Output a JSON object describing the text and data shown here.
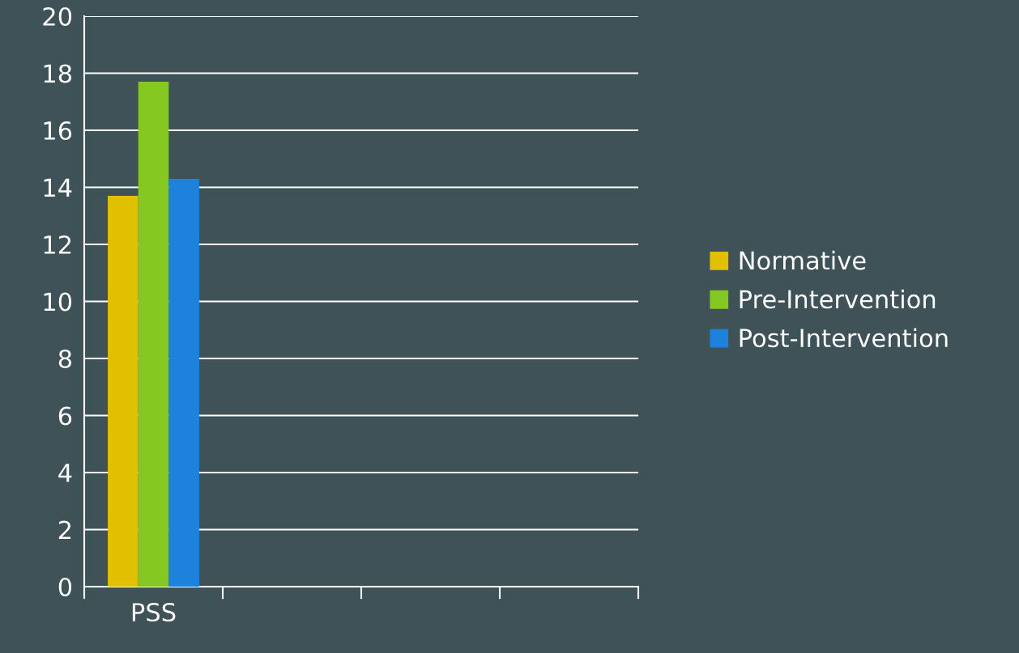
{
  "chart_data": {
    "type": "bar",
    "categories": [
      "PSS",
      null,
      null,
      null
    ],
    "series": [
      {
        "name": "Normative",
        "color": "#e0c000",
        "values": [
          13.7,
          null,
          null,
          null
        ]
      },
      {
        "name": "Pre-Intervention",
        "color": "#86c822",
        "values": [
          17.7,
          null,
          null,
          null
        ]
      },
      {
        "name": "Post-Intervention",
        "color": "#1c82dc",
        "values": [
          14.3,
          null,
          null,
          null
        ]
      }
    ],
    "ylim": [
      0,
      20
    ],
    "yticks": [
      0,
      2,
      4,
      6,
      8,
      10,
      12,
      14,
      16,
      18,
      20
    ],
    "grid": "y",
    "legend": "right"
  }
}
